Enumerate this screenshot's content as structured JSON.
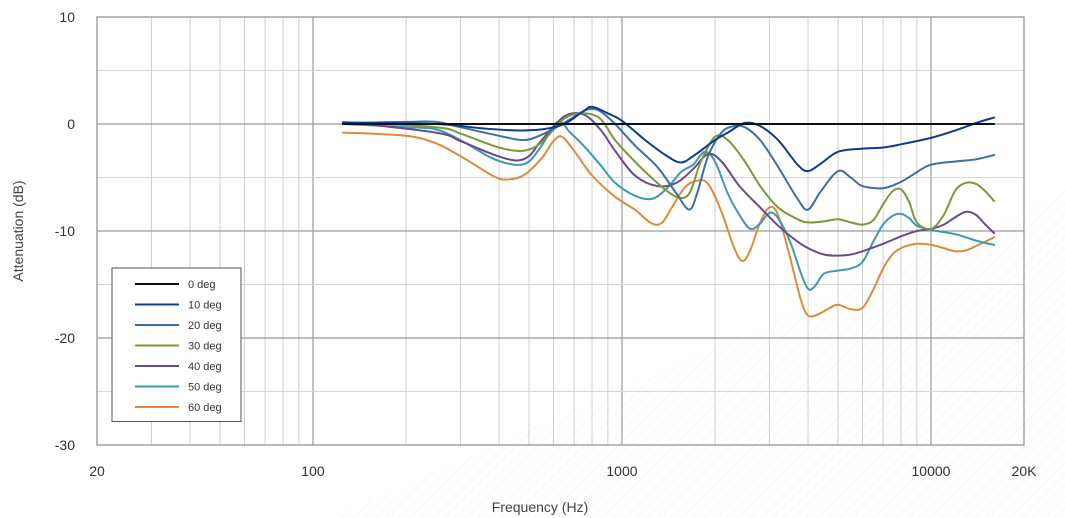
{
  "chart_data": {
    "type": "line",
    "title": "",
    "xlabel": "Frequency (Hz)",
    "ylabel": "Attenuation (dB)",
    "x_scale": "log",
    "xlim": [
      20,
      20000
    ],
    "ylim": [
      -30,
      10
    ],
    "grid": true,
    "legend_position": "bottom-left",
    "x_ticks": [
      {
        "value": 20,
        "label": "20"
      },
      {
        "value": 100,
        "label": "100"
      },
      {
        "value": 1000,
        "label": "1000"
      },
      {
        "value": 10000,
        "label": "10000"
      },
      {
        "value": 20000,
        "label": "20K"
      }
    ],
    "y_ticks": [
      {
        "value": 10,
        "label": "10"
      },
      {
        "value": 0,
        "label": "0"
      },
      {
        "value": -10,
        "label": "-10"
      },
      {
        "value": -20,
        "label": "-20"
      },
      {
        "value": -30,
        "label": "-30"
      }
    ],
    "series": [
      {
        "name": "0 deg",
        "color": "#111111",
        "width": 2,
        "points": [
          [
            125,
            0
          ],
          [
            16000,
            0
          ]
        ]
      },
      {
        "name": "10 deg",
        "color": "#0a3d91",
        "width": 2,
        "points": [
          [
            125,
            0.1
          ],
          [
            250,
            0
          ],
          [
            350,
            -0.4
          ],
          [
            450,
            -0.6
          ],
          [
            550,
            -0.5
          ],
          [
            650,
            0
          ],
          [
            750,
            1.2
          ],
          [
            800,
            1.6
          ],
          [
            900,
            1.0
          ],
          [
            1000,
            0.3
          ],
          [
            1200,
            -1.6
          ],
          [
            1400,
            -3.0
          ],
          [
            1550,
            -3.6
          ],
          [
            1700,
            -3.0
          ],
          [
            2000,
            -1.5
          ],
          [
            2200,
            -0.8
          ],
          [
            2500,
            0.1
          ],
          [
            2800,
            -0.2
          ],
          [
            3200,
            -1.5
          ],
          [
            3700,
            -3.8
          ],
          [
            4000,
            -4.4
          ],
          [
            4400,
            -3.7
          ],
          [
            5000,
            -2.6
          ],
          [
            6000,
            -2.3
          ],
          [
            7000,
            -2.2
          ],
          [
            8000,
            -1.9
          ],
          [
            10000,
            -1.3
          ],
          [
            12000,
            -0.6
          ],
          [
            14000,
            0.1
          ],
          [
            16000,
            0.6
          ]
        ]
      },
      {
        "name": "20 deg",
        "color": "#3a6fa8",
        "width": 2,
        "points": [
          [
            125,
            0.1
          ],
          [
            200,
            0.2
          ],
          [
            250,
            0.2
          ],
          [
            300,
            -0.3
          ],
          [
            400,
            -1.1
          ],
          [
            480,
            -1.5
          ],
          [
            550,
            -1.0
          ],
          [
            650,
            0.1
          ],
          [
            750,
            1.2
          ],
          [
            800,
            1.4
          ],
          [
            850,
            1.2
          ],
          [
            950,
            0.0
          ],
          [
            1100,
            -2.0
          ],
          [
            1300,
            -4.0
          ],
          [
            1500,
            -6.5
          ],
          [
            1650,
            -8.0
          ],
          [
            1750,
            -6.5
          ],
          [
            1900,
            -3.0
          ],
          [
            2100,
            -0.8
          ],
          [
            2300,
            -0.2
          ],
          [
            2500,
            -0.3
          ],
          [
            2800,
            -1.5
          ],
          [
            3200,
            -4.0
          ],
          [
            3700,
            -7.0
          ],
          [
            4000,
            -8.0
          ],
          [
            4400,
            -6.3
          ],
          [
            5000,
            -4.4
          ],
          [
            5500,
            -5.0
          ],
          [
            6000,
            -5.8
          ],
          [
            7000,
            -6.0
          ],
          [
            8000,
            -5.4
          ],
          [
            9000,
            -4.5
          ],
          [
            10000,
            -3.8
          ],
          [
            12000,
            -3.5
          ],
          [
            14000,
            -3.3
          ],
          [
            16000,
            -2.9
          ]
        ]
      },
      {
        "name": "30 deg",
        "color": "#7a9a3a",
        "width": 2,
        "points": [
          [
            125,
            0.2
          ],
          [
            250,
            -0.3
          ],
          [
            300,
            -0.9
          ],
          [
            400,
            -2.2
          ],
          [
            480,
            -2.5
          ],
          [
            550,
            -1.7
          ],
          [
            650,
            0.5
          ],
          [
            750,
            1.0
          ],
          [
            850,
            0.5
          ],
          [
            950,
            -1.5
          ],
          [
            1100,
            -3.5
          ],
          [
            1300,
            -5.5
          ],
          [
            1500,
            -6.8
          ],
          [
            1650,
            -6.5
          ],
          [
            1800,
            -3.5
          ],
          [
            2000,
            -1.2
          ],
          [
            2200,
            -1.5
          ],
          [
            2500,
            -3.5
          ],
          [
            2800,
            -5.8
          ],
          [
            3200,
            -7.8
          ],
          [
            3700,
            -8.9
          ],
          [
            4000,
            -9.2
          ],
          [
            4500,
            -9.1
          ],
          [
            5000,
            -8.9
          ],
          [
            5500,
            -9.2
          ],
          [
            6000,
            -9.4
          ],
          [
            6500,
            -9.0
          ],
          [
            7000,
            -7.5
          ],
          [
            7500,
            -6.3
          ],
          [
            8000,
            -6.1
          ],
          [
            8500,
            -7.3
          ],
          [
            9000,
            -9.2
          ],
          [
            10000,
            -9.8
          ],
          [
            11000,
            -8.5
          ],
          [
            12000,
            -6.2
          ],
          [
            13000,
            -5.5
          ],
          [
            14000,
            -5.6
          ],
          [
            15000,
            -6.3
          ],
          [
            16000,
            -7.2
          ]
        ]
      },
      {
        "name": "40 deg",
        "color": "#6a4a8e",
        "width": 2,
        "points": [
          [
            125,
            0.2
          ],
          [
            250,
            -0.8
          ],
          [
            300,
            -1.6
          ],
          [
            380,
            -2.8
          ],
          [
            450,
            -3.4
          ],
          [
            500,
            -3.0
          ],
          [
            550,
            -1.5
          ],
          [
            650,
            0.7
          ],
          [
            750,
            0.9
          ],
          [
            850,
            -0.5
          ],
          [
            950,
            -2.5
          ],
          [
            1100,
            -4.8
          ],
          [
            1300,
            -5.8
          ],
          [
            1500,
            -5.5
          ],
          [
            1700,
            -4.2
          ],
          [
            1900,
            -2.8
          ],
          [
            2100,
            -3.5
          ],
          [
            2400,
            -5.8
          ],
          [
            2800,
            -7.8
          ],
          [
            3200,
            -9.5
          ],
          [
            3700,
            -11.0
          ],
          [
            4000,
            -11.6
          ],
          [
            4500,
            -12.2
          ],
          [
            5000,
            -12.3
          ],
          [
            5500,
            -12.2
          ],
          [
            6000,
            -11.9
          ],
          [
            7000,
            -11.2
          ],
          [
            8000,
            -10.5
          ],
          [
            9000,
            -10.0
          ],
          [
            10000,
            -9.8
          ],
          [
            11000,
            -9.4
          ],
          [
            12000,
            -8.7
          ],
          [
            13000,
            -8.2
          ],
          [
            14000,
            -8.5
          ],
          [
            15000,
            -9.4
          ],
          [
            16000,
            -10.2
          ]
        ]
      },
      {
        "name": "50 deg",
        "color": "#3a9bb0",
        "width": 2,
        "points": [
          [
            125,
            0.0
          ],
          [
            200,
            -0.3
          ],
          [
            250,
            -0.5
          ],
          [
            300,
            -1.5
          ],
          [
            380,
            -3.2
          ],
          [
            450,
            -3.8
          ],
          [
            500,
            -3.5
          ],
          [
            550,
            -2.0
          ],
          [
            620,
            0.2
          ],
          [
            680,
            -0.8
          ],
          [
            750,
            -2.0
          ],
          [
            850,
            -3.8
          ],
          [
            950,
            -5.5
          ],
          [
            1100,
            -6.7
          ],
          [
            1250,
            -7.0
          ],
          [
            1400,
            -6.0
          ],
          [
            1550,
            -4.5
          ],
          [
            1700,
            -3.8
          ],
          [
            1850,
            -2.6
          ],
          [
            2000,
            -3.5
          ],
          [
            2200,
            -6.5
          ],
          [
            2400,
            -8.5
          ],
          [
            2600,
            -9.8
          ],
          [
            2800,
            -9.3
          ],
          [
            3000,
            -8.3
          ],
          [
            3200,
            -8.8
          ],
          [
            3500,
            -11.0
          ],
          [
            3800,
            -14.0
          ],
          [
            4000,
            -15.4
          ],
          [
            4200,
            -15.2
          ],
          [
            4500,
            -14.0
          ],
          [
            5000,
            -13.7
          ],
          [
            5500,
            -13.5
          ],
          [
            6000,
            -12.9
          ],
          [
            6500,
            -11.0
          ],
          [
            7000,
            -9.4
          ],
          [
            7500,
            -8.6
          ],
          [
            8000,
            -8.4
          ],
          [
            8500,
            -8.8
          ],
          [
            9000,
            -9.5
          ],
          [
            10000,
            -9.9
          ],
          [
            12000,
            -10.3
          ],
          [
            14000,
            -10.9
          ],
          [
            16000,
            -11.3
          ]
        ]
      },
      {
        "name": "60 deg",
        "color": "#e08a3a",
        "width": 2,
        "points": [
          [
            125,
            -0.8
          ],
          [
            200,
            -1.1
          ],
          [
            250,
            -1.8
          ],
          [
            300,
            -3.0
          ],
          [
            380,
            -4.8
          ],
          [
            420,
            -5.2
          ],
          [
            480,
            -4.8
          ],
          [
            550,
            -3.2
          ],
          [
            600,
            -1.6
          ],
          [
            640,
            -1.2
          ],
          [
            700,
            -2.5
          ],
          [
            800,
            -4.8
          ],
          [
            950,
            -6.8
          ],
          [
            1100,
            -8.0
          ],
          [
            1250,
            -9.3
          ],
          [
            1350,
            -9.2
          ],
          [
            1450,
            -7.8
          ],
          [
            1600,
            -5.9
          ],
          [
            1750,
            -5.3
          ],
          [
            1900,
            -5.6
          ],
          [
            2100,
            -8.2
          ],
          [
            2300,
            -11.5
          ],
          [
            2450,
            -12.8
          ],
          [
            2600,
            -11.8
          ],
          [
            2800,
            -9.2
          ],
          [
            3000,
            -7.8
          ],
          [
            3200,
            -8.5
          ],
          [
            3500,
            -12.5
          ],
          [
            3800,
            -16.5
          ],
          [
            4000,
            -17.9
          ],
          [
            4300,
            -17.8
          ],
          [
            4700,
            -17.2
          ],
          [
            5000,
            -16.9
          ],
          [
            5500,
            -17.3
          ],
          [
            6000,
            -17.2
          ],
          [
            6500,
            -15.5
          ],
          [
            7000,
            -13.5
          ],
          [
            7500,
            -12.2
          ],
          [
            8000,
            -11.6
          ],
          [
            9000,
            -11.2
          ],
          [
            10000,
            -11.3
          ],
          [
            11000,
            -11.6
          ],
          [
            12000,
            -11.9
          ],
          [
            13000,
            -11.8
          ],
          [
            14000,
            -11.4
          ],
          [
            16000,
            -10.6
          ]
        ]
      }
    ]
  }
}
